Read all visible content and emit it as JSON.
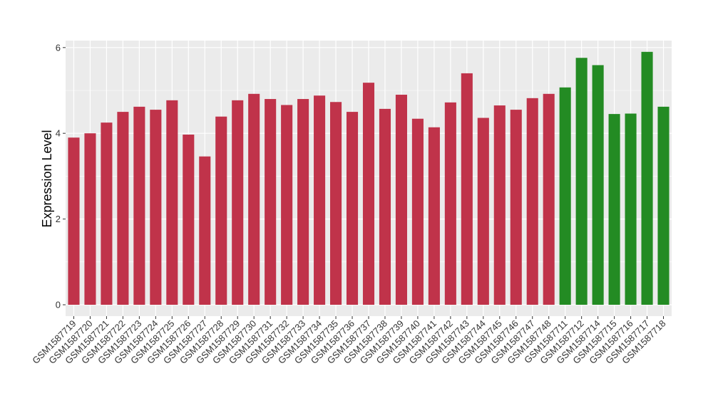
{
  "chart_data": {
    "type": "bar",
    "ylabel": "Expression Level",
    "xlabel": "",
    "ylim": [
      0,
      6.2
    ],
    "yticks": [
      0,
      2,
      4,
      6
    ],
    "grid": true,
    "categories": [
      "GSM1587719",
      "GSM1587720",
      "GSM1587721",
      "GSM1587722",
      "GSM1587723",
      "GSM1587724",
      "GSM1587725",
      "GSM1587726",
      "GSM1587727",
      "GSM1587728",
      "GSM1587729",
      "GSM1587730",
      "GSM1587731",
      "GSM1587732",
      "GSM1587733",
      "GSM1587734",
      "GSM1587735",
      "GSM1587736",
      "GSM1587737",
      "GSM1587738",
      "GSM1587739",
      "GSM1587740",
      "GSM1587741",
      "GSM1587742",
      "GSM1587743",
      "GSM1587744",
      "GSM1587745",
      "GSM1587746",
      "GSM1587747",
      "GSM1587748",
      "GSM1587711",
      "GSM1587712",
      "GSM1587714",
      "GSM1587715",
      "GSM1587716",
      "GSM1587717",
      "GSM1587718"
    ],
    "values": [
      3.9,
      4.0,
      4.25,
      4.5,
      4.62,
      4.55,
      4.77,
      3.97,
      3.46,
      4.39,
      4.77,
      4.92,
      4.8,
      4.66,
      4.8,
      4.88,
      4.73,
      4.5,
      5.18,
      4.57,
      4.9,
      4.34,
      4.14,
      4.72,
      5.4,
      4.36,
      4.65,
      4.55,
      4.82,
      4.92,
      5.07,
      5.76,
      5.59,
      4.45,
      4.46,
      5.9,
      4.62
    ],
    "groups": [
      "red",
      "red",
      "red",
      "red",
      "red",
      "red",
      "red",
      "red",
      "red",
      "red",
      "red",
      "red",
      "red",
      "red",
      "red",
      "red",
      "red",
      "red",
      "red",
      "red",
      "red",
      "red",
      "red",
      "red",
      "red",
      "red",
      "red",
      "red",
      "red",
      "red",
      "green",
      "green",
      "green",
      "green",
      "green",
      "green",
      "green"
    ],
    "colors": {
      "red": "#c0334a",
      "green": "#238b23",
      "panel": "#ebebeb",
      "grid": "#ffffff"
    }
  }
}
